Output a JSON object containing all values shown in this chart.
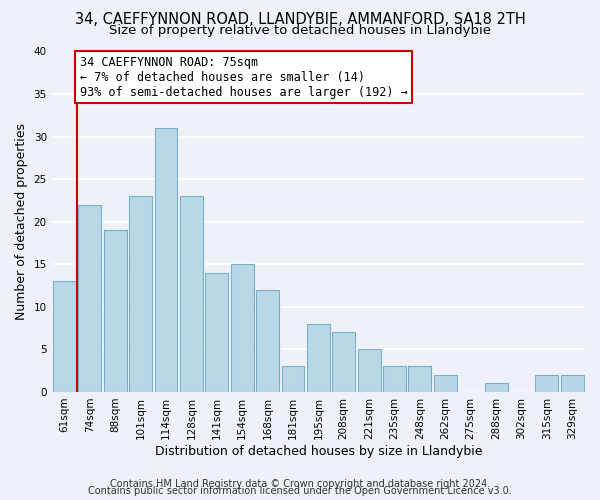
{
  "title1": "34, CAEFFYNNON ROAD, LLANDYBIE, AMMANFORD, SA18 2TH",
  "title2": "Size of property relative to detached houses in Llandybie",
  "xlabel": "Distribution of detached houses by size in Llandybie",
  "ylabel": "Number of detached properties",
  "bar_labels": [
    "61sqm",
    "74sqm",
    "88sqm",
    "101sqm",
    "114sqm",
    "128sqm",
    "141sqm",
    "154sqm",
    "168sqm",
    "181sqm",
    "195sqm",
    "208sqm",
    "221sqm",
    "235sqm",
    "248sqm",
    "262sqm",
    "275sqm",
    "288sqm",
    "302sqm",
    "315sqm",
    "329sqm"
  ],
  "bar_heights": [
    13,
    22,
    19,
    23,
    31,
    23,
    14,
    15,
    12,
    3,
    8,
    7,
    5,
    3,
    3,
    2,
    0,
    1,
    0,
    2,
    2
  ],
  "bar_color": "#b8d8e8",
  "bar_edge_color": "#7ab0cc",
  "vline_x_bar_index": 1,
  "vline_color": "#cc0000",
  "annotation_text": "34 CAEFFYNNON ROAD: 75sqm\n← 7% of detached houses are smaller (14)\n93% of semi-detached houses are larger (192) →",
  "annotation_box_edge": "#cc0000",
  "annotation_box_bg": "#ffffff",
  "ylim": [
    0,
    40
  ],
  "yticks": [
    0,
    5,
    10,
    15,
    20,
    25,
    30,
    35,
    40
  ],
  "footer1": "Contains HM Land Registry data © Crown copyright and database right 2024.",
  "footer2": "Contains public sector information licensed under the Open Government Licence v3.0.",
  "bg_color": "#eef2f8",
  "plot_bg_color": "#eef2f8",
  "grid_color": "#ffffff",
  "title_fontsize": 10.5,
  "subtitle_fontsize": 9.5,
  "label_fontsize": 9,
  "tick_fontsize": 7.5,
  "footer_fontsize": 7,
  "annotation_fontsize": 8.5
}
